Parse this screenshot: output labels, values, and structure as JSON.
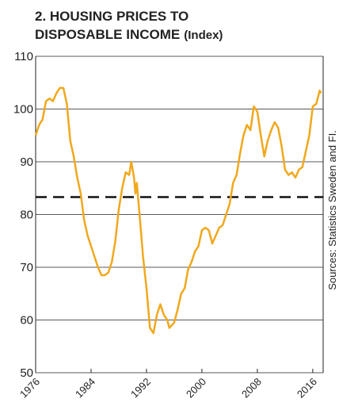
{
  "chart_data": {
    "type": "line",
    "title_line1": "2. HOUSING PRICES TO",
    "title_line2": "DISPOSABLE INCOME",
    "title_unit": "(Index)",
    "source": "Sources: Statistics Sweden and FI.",
    "x": [
      1976,
      1976.5,
      1977,
      1977.5,
      1978,
      1978.5,
      1979,
      1979.5,
      1980,
      1980.5,
      1981,
      1981.5,
      1982,
      1982.5,
      1983,
      1983.5,
      1984,
      1984.5,
      1985,
      1985.5,
      1986,
      1986.5,
      1987,
      1987.5,
      1988,
      1988.5,
      1989,
      1989.5,
      1989.8,
      1990.2,
      1990.4,
      1990.6,
      1991,
      1991.5,
      1992,
      1992.5,
      1993,
      1993.5,
      1994,
      1994.5,
      1995,
      1995.3,
      1996,
      1996.5,
      1997,
      1997.5,
      1998,
      1998.5,
      1999,
      1999.5,
      2000,
      2000.5,
      2001,
      2001.5,
      2002,
      2002.5,
      2003,
      2003.5,
      2004,
      2004.5,
      2005,
      2005.5,
      2006,
      2006.5,
      2007,
      2007.5,
      2008,
      2008.5,
      2009,
      2009.5,
      2010,
      2010.5,
      2011,
      2011.5,
      2012,
      2012.5,
      2013,
      2013.5,
      2014,
      2014.5,
      2015,
      2015.5,
      2016,
      2016.5,
      2017,
      2017.2
    ],
    "series": [
      {
        "name": "Housing prices to disposable income",
        "color": "#f0a81c",
        "values": [
          95,
          97,
          98,
          101.5,
          102,
          101.5,
          103,
          104,
          104,
          101,
          94,
          91,
          87,
          84,
          79,
          76,
          74,
          72,
          70,
          68.5,
          68.5,
          69,
          71,
          75,
          81,
          85,
          88,
          87.5,
          90,
          87,
          84,
          86,
          80,
          72,
          66,
          58.5,
          57.5,
          61,
          63,
          61,
          60,
          58.5,
          59.5,
          62,
          65,
          66,
          69.5,
          71,
          73,
          74,
          77,
          77.5,
          77,
          74.5,
          76,
          77.5,
          78,
          80,
          82,
          86,
          87.5,
          91.5,
          95,
          97,
          96,
          100.5,
          99.5,
          95,
          91,
          94,
          96,
          97.5,
          96.5,
          93,
          88.5,
          87.5,
          88,
          87,
          88.5,
          89,
          92,
          95,
          100.5,
          101,
          103.5,
          103
        ]
      }
    ],
    "reference_line": 83.3,
    "xlim": [
      1976,
      2017.5
    ],
    "xticks": [
      1976,
      1984,
      1992,
      2000,
      2008,
      2016
    ],
    "ylim": [
      50,
      110
    ],
    "yticks": [
      50,
      60,
      70,
      80,
      90,
      100,
      110
    ],
    "grid": true
  }
}
